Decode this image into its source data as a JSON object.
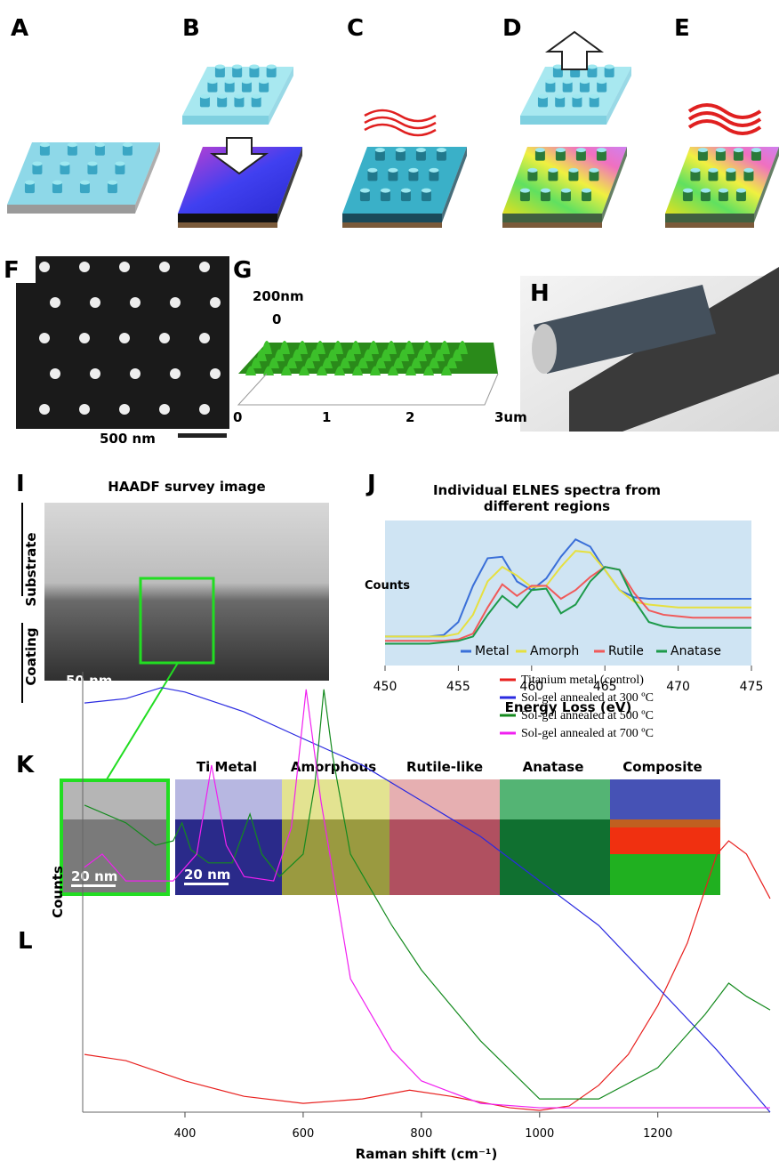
{
  "panels": [
    "A",
    "B",
    "C",
    "D",
    "E",
    "F",
    "G",
    "H",
    "I",
    "J",
    "K",
    "L"
  ],
  "sem": {
    "scale": "500 nm"
  },
  "afm": {
    "z_top": "200nm",
    "z_zero": "0",
    "x_labels": [
      "0",
      "1",
      "2",
      "3um"
    ]
  },
  "tem": {
    "title": "HAADF survey image",
    "regions": [
      "Substrate",
      "Coating"
    ],
    "scale": "50 nm"
  },
  "maps": {
    "titles": [
      "Ti Metal",
      "Amorphous",
      "Rutile-like",
      "Anatase",
      "Composite"
    ],
    "scales": [
      "20 nm",
      "20 nm"
    ]
  },
  "chart_data": [
    {
      "type": "line",
      "title": [
        "Individual ELNES spectra from",
        "different regions"
      ],
      "x_label": "Energy Loss (eV)",
      "y_label": "Counts",
      "background": "#cfe4f3",
      "legend": "lower center",
      "xlim": [
        450,
        475
      ],
      "xticks": [
        450,
        455,
        460,
        465,
        470,
        475
      ],
      "ylim": [
        0,
        100
      ],
      "x": [
        450,
        451,
        452,
        453,
        454,
        455,
        456,
        457,
        458,
        459,
        460,
        461,
        462,
        463,
        464,
        465,
        466,
        467,
        468,
        469,
        470,
        471,
        472,
        473,
        474,
        475
      ],
      "series": [
        {
          "name": "Metal",
          "color": "#3a6fd8",
          "values": [
            20,
            20,
            20,
            20,
            21,
            30,
            55,
            74,
            75,
            58,
            52,
            60,
            75,
            87,
            82,
            66,
            52,
            47,
            46,
            46,
            46,
            46,
            46,
            46,
            46,
            46
          ]
        },
        {
          "name": "Amorph",
          "color": "#e6e040",
          "values": [
            20,
            20,
            20,
            20,
            20,
            22,
            35,
            58,
            68,
            62,
            54,
            55,
            68,
            79,
            78,
            66,
            52,
            44,
            42,
            41,
            40,
            40,
            40,
            40,
            40,
            40
          ]
        },
        {
          "name": "Rutile",
          "color": "#f05a5a",
          "values": [
            17,
            17,
            17,
            17,
            17,
            18,
            22,
            40,
            56,
            48,
            55,
            55,
            46,
            52,
            61,
            68,
            66,
            50,
            38,
            35,
            34,
            33,
            33,
            33,
            33,
            33
          ]
        },
        {
          "name": "Anatase",
          "color": "#1d9a4a",
          "values": [
            15,
            15,
            15,
            15,
            16,
            17,
            20,
            35,
            48,
            40,
            52,
            53,
            36,
            42,
            58,
            68,
            66,
            45,
            30,
            27,
            26,
            26,
            26,
            26,
            26,
            26
          ]
        }
      ]
    },
    {
      "type": "line",
      "x_label": "Raman shift (cm⁻¹)",
      "y_label": "Counts",
      "legend": "upper right",
      "xlim": [
        227,
        1390
      ],
      "xticks": [
        400,
        600,
        800,
        1000,
        1200
      ],
      "ylim": [
        0,
        100
      ],
      "series": [
        {
          "name": "Titanium metal (control)",
          "color": "#e8201e",
          "x": [
            230,
            300,
            400,
            500,
            600,
            700,
            780,
            850,
            950,
            1000,
            1050,
            1100,
            1150,
            1200,
            1250,
            1300,
            1320,
            1350,
            1390
          ],
          "values": [
            13.1,
            11.7,
            7.1,
            3.6,
            2,
            3,
            5,
            3.6,
            1,
            0.4,
            1.4,
            6.1,
            13.1,
            24.2,
            38.4,
            58.6,
            61.6,
            58.6,
            48.5
          ]
        },
        {
          "name": "Sol-gel annealed at 300 ºC",
          "color": "#2a2ae0",
          "x": [
            230,
            300,
            360,
            400,
            500,
            600,
            700,
            800,
            900,
            1000,
            1100,
            1200,
            1300,
            1390
          ],
          "values": [
            92.9,
            93.9,
            96.4,
            95.4,
            90.9,
            84.8,
            78.8,
            70.7,
            62.6,
            52.5,
            42.4,
            28.3,
            14.1,
            0
          ]
        },
        {
          "name": "Sol-gel annealed at 500 ºC",
          "color": "#148a1e",
          "x": [
            230,
            300,
            350,
            380,
            395,
            410,
            440,
            480,
            510,
            530,
            560,
            600,
            620,
            635,
            650,
            680,
            750,
            800,
            900,
            1000,
            1100,
            1200,
            1280,
            1320,
            1350,
            1390
          ],
          "values": [
            69.7,
            65.7,
            60.6,
            61.6,
            65.7,
            59.6,
            56.6,
            56.6,
            67.7,
            58.6,
            53.5,
            58.6,
            74.7,
            96,
            80.8,
            58.6,
            42.4,
            32.3,
            16.2,
            3,
            3,
            10.1,
            22.2,
            29.3,
            26.3,
            23.2
          ]
        },
        {
          "name": "Sol-gel annealed at 700 ºC",
          "color": "#f020f0",
          "x": [
            230,
            260,
            300,
            380,
            420,
            445,
            470,
            500,
            550,
            580,
            605,
            630,
            680,
            750,
            800,
            900,
            1000,
            1200,
            1390
          ],
          "values": [
            55.6,
            58.6,
            52.5,
            52.5,
            58.6,
            78.8,
            60.6,
            53.5,
            52.5,
            64.6,
            96,
            70.7,
            30.3,
            14.1,
            7.1,
            2,
            1,
            1,
            1
          ]
        }
      ]
    }
  ]
}
